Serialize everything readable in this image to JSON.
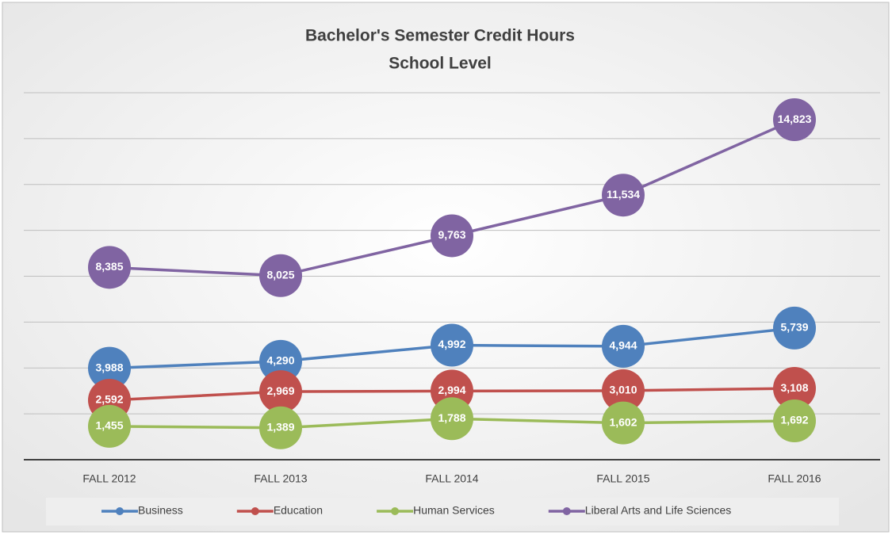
{
  "chart_data": {
    "type": "line",
    "title": "Bachelor's Semester Credit Hours",
    "subtitle": "School Level",
    "categories": [
      "FALL 2012",
      "FALL 2013",
      "FALL 2014",
      "FALL 2015",
      "FALL 2016"
    ],
    "series": [
      {
        "name": "Business",
        "color": "#4f81bd",
        "values": [
          3988,
          4290,
          4992,
          4944,
          5739
        ],
        "value_labels": [
          "3,988",
          "4,290",
          "4,992",
          "4,944",
          "5,739"
        ]
      },
      {
        "name": "Education",
        "color": "#c0504d",
        "values": [
          2592,
          2969,
          2994,
          3010,
          3108
        ],
        "value_labels": [
          "2,592",
          "2,969",
          "2,994",
          "3,010",
          "3,108"
        ]
      },
      {
        "name": "Human Services",
        "color": "#9bbb59",
        "values": [
          1455,
          1389,
          1788,
          1602,
          1692
        ],
        "value_labels": [
          "1,455",
          "1,389",
          "1,788",
          "1,602",
          "1,692"
        ]
      },
      {
        "name": "Liberal Arts and Life Sciences",
        "color": "#8064a2",
        "values": [
          8385,
          8025,
          9763,
          11534,
          14823
        ],
        "value_labels": [
          "8,385",
          "8,025",
          "9,763",
          "11,534",
          "14,823"
        ]
      }
    ],
    "ylim": [
      0,
      16000
    ],
    "yticks": [
      0,
      2000,
      4000,
      6000,
      8000,
      10000,
      12000,
      14000,
      16000
    ],
    "grid": true,
    "legend": "bottom"
  }
}
